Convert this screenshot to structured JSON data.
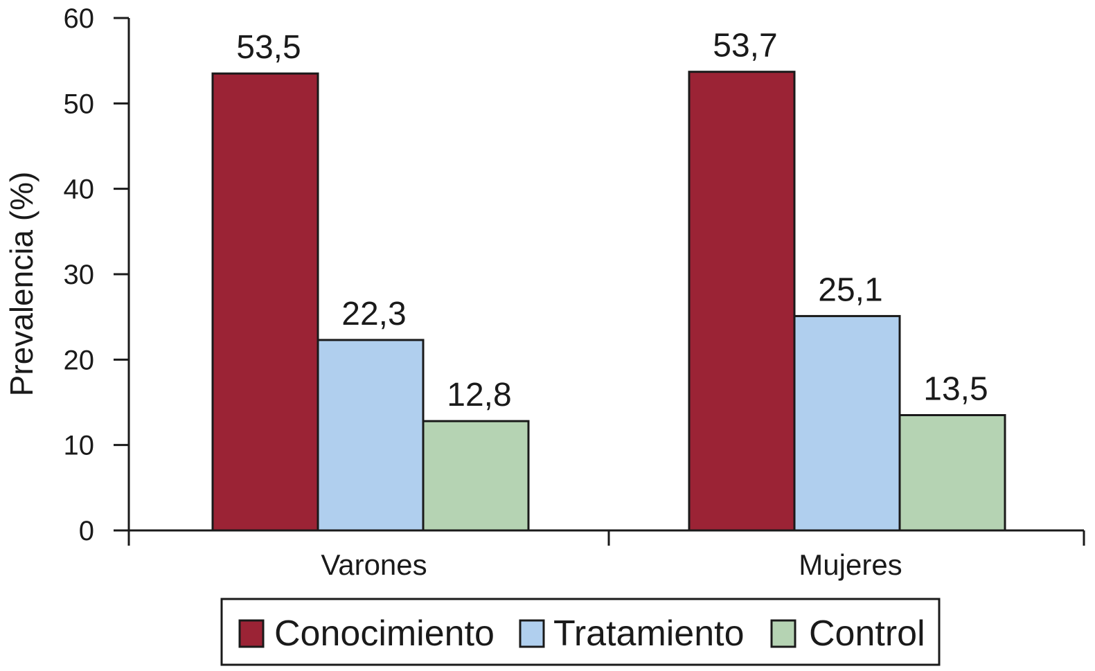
{
  "chart_data": {
    "type": "bar",
    "categories": [
      "Varones",
      "Mujeres"
    ],
    "series": [
      {
        "name": "Conocimiento",
        "color": "#9b2335",
        "values": [
          53.5,
          53.7
        ],
        "labels": [
          "53,5",
          "53,7"
        ]
      },
      {
        "name": "Tratamiento",
        "color": "#b0cfee",
        "values": [
          22.3,
          25.1
        ],
        "labels": [
          "22,3",
          "25,1"
        ]
      },
      {
        "name": "Control",
        "color": "#b5d3b3",
        "values": [
          12.8,
          13.5
        ],
        "labels": [
          "12,8",
          "13,5"
        ]
      }
    ],
    "ylabel": "Prevalencia (%)",
    "ylim": [
      0,
      60
    ],
    "yticks": [
      0,
      10,
      20,
      30,
      40,
      50,
      60
    ],
    "grid": false,
    "legend_position": "bottom"
  }
}
